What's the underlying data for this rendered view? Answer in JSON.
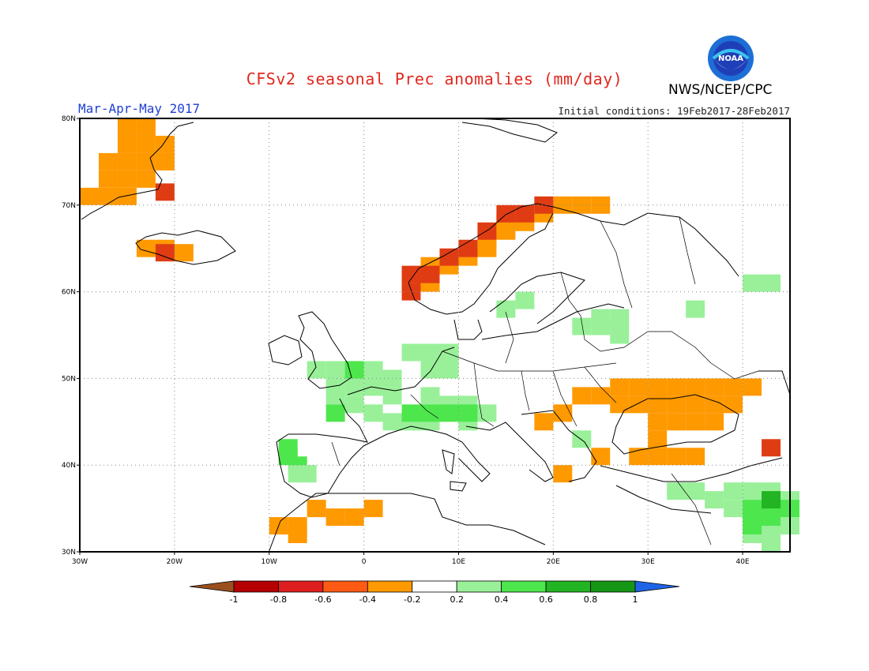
{
  "title": "CFSv2 seasonal Prec anomalies (mm/day)",
  "season_label": "Mar-Apr-May 2017",
  "initial_conditions": "Initial conditions: 19Feb2017-28Feb2017",
  "agency": "NWS/NCEP/CPC",
  "logo": {
    "text": "NOAA",
    "icon": "noaa-logo-icon"
  },
  "map": {
    "lon_range": [
      -30,
      45
    ],
    "lat_range": [
      30,
      80
    ],
    "lon_ticks": [
      {
        "value": -30,
        "label": "30W"
      },
      {
        "value": -20,
        "label": "20W"
      },
      {
        "value": -10,
        "label": "10W"
      },
      {
        "value": 0,
        "label": "0"
      },
      {
        "value": 10,
        "label": "10E"
      },
      {
        "value": 20,
        "label": "20E"
      },
      {
        "value": 30,
        "label": "30E"
      },
      {
        "value": 40,
        "label": "40E"
      }
    ],
    "lat_ticks": [
      {
        "value": 30,
        "label": "30N"
      },
      {
        "value": 40,
        "label": "40N"
      },
      {
        "value": 50,
        "label": "50N"
      },
      {
        "value": 60,
        "label": "60N"
      },
      {
        "value": 70,
        "label": "70N"
      },
      {
        "value": 80,
        "label": "80N"
      }
    ],
    "grid": true,
    "anomaly_regions": [
      {
        "name": "greenland-east",
        "class": "-0.4",
        "color": "#ff9900",
        "cells": [
          [
            -25,
            79
          ],
          [
            -23,
            79
          ],
          [
            -25,
            77
          ],
          [
            -23,
            77
          ],
          [
            -21,
            77
          ],
          [
            -27,
            75
          ],
          [
            -25,
            75
          ],
          [
            -23,
            75
          ],
          [
            -21,
            75
          ],
          [
            -27,
            73
          ],
          [
            -25,
            73
          ],
          [
            -23,
            73
          ],
          [
            -29,
            71
          ],
          [
            -27,
            71
          ],
          [
            -25,
            71
          ]
        ]
      },
      {
        "name": "greenland-east-dry",
        "class": "-0.6",
        "color": "#e03c14",
        "cells": [
          [
            -21,
            71.5
          ]
        ]
      },
      {
        "name": "iceland-west",
        "class": "-0.4",
        "color": "#ff9900",
        "cells": [
          [
            -23,
            65
          ],
          [
            -21,
            65
          ],
          [
            -19,
            64.5
          ]
        ]
      },
      {
        "name": "iceland-west-dry",
        "class": "-0.6",
        "color": "#e03c14",
        "cells": [
          [
            -21,
            64.5
          ]
        ]
      },
      {
        "name": "norway-coast",
        "class": "-0.4",
        "color": "#ff9900",
        "cells": [
          [
            5,
            61
          ],
          [
            7,
            61
          ],
          [
            7,
            63
          ],
          [
            9,
            63
          ],
          [
            11,
            64
          ],
          [
            13,
            65
          ],
          [
            13,
            66
          ],
          [
            15,
            67
          ],
          [
            15,
            68
          ],
          [
            17,
            68
          ],
          [
            19,
            69
          ],
          [
            21,
            70
          ],
          [
            23,
            70
          ],
          [
            25,
            70
          ]
        ]
      },
      {
        "name": "norway-coast-dry",
        "class": "-0.6",
        "color": "#e03c14",
        "cells": [
          [
            5,
            62
          ],
          [
            5,
            60
          ],
          [
            7,
            62
          ],
          [
            9,
            64
          ],
          [
            11,
            65
          ],
          [
            13,
            67
          ],
          [
            15,
            69
          ],
          [
            17,
            69
          ],
          [
            19,
            70
          ]
        ]
      },
      {
        "name": "ukraine-russia",
        "class": "-0.4",
        "color": "#ff9900",
        "cells": [
          [
            27,
            49
          ],
          [
            29,
            49
          ],
          [
            31,
            49
          ],
          [
            33,
            49
          ],
          [
            35,
            49
          ],
          [
            37,
            49
          ],
          [
            39,
            49
          ],
          [
            41,
            49
          ],
          [
            29,
            47
          ],
          [
            31,
            47
          ],
          [
            33,
            47
          ],
          [
            35,
            47
          ],
          [
            37,
            47
          ],
          [
            39,
            47
          ],
          [
            31,
            45
          ],
          [
            33,
            45
          ],
          [
            35,
            45
          ],
          [
            37,
            45
          ],
          [
            31,
            43
          ],
          [
            29,
            41
          ],
          [
            31,
            41
          ],
          [
            33,
            41
          ],
          [
            35,
            41
          ],
          [
            25,
            48
          ],
          [
            23,
            48
          ],
          [
            21,
            46
          ],
          [
            19,
            45
          ],
          [
            25,
            41
          ],
          [
            21,
            39
          ],
          [
            31,
            48
          ],
          [
            27,
            47
          ]
        ]
      },
      {
        "name": "caucasus-dry",
        "class": "-0.6",
        "color": "#e03c14",
        "cells": [
          [
            43,
            42
          ]
        ]
      },
      {
        "name": "morocco-algeria",
        "class": "-0.4",
        "color": "#ff9900",
        "cells": [
          [
            -7,
            33
          ],
          [
            -5,
            35
          ],
          [
            -3,
            34
          ],
          [
            -1,
            34
          ],
          [
            1,
            35
          ],
          [
            -9,
            33
          ],
          [
            -7,
            32
          ]
        ]
      },
      {
        "name": "spain-portugal",
        "class": "0.4",
        "color": "#4de64d",
        "cells": [
          [
            -8,
            42
          ],
          [
            -8,
            41
          ],
          [
            -7,
            40
          ]
        ]
      },
      {
        "name": "spain-portugal-wet",
        "class": "0.2",
        "color": "#99f099",
        "cells": [
          [
            -6,
            39
          ],
          [
            -7,
            39
          ]
        ]
      },
      {
        "name": "france-alps",
        "class": "0.2",
        "color": "#99f099",
        "cells": [
          [
            -5,
            51
          ],
          [
            -3,
            51
          ],
          [
            -1,
            51
          ],
          [
            1,
            51
          ],
          [
            3,
            50
          ],
          [
            -3,
            49
          ],
          [
            -1,
            49
          ],
          [
            1,
            49
          ],
          [
            3,
            48
          ],
          [
            -1,
            47
          ],
          [
            1,
            46
          ],
          [
            3,
            45
          ],
          [
            5,
            45
          ],
          [
            7,
            45
          ],
          [
            9,
            47
          ],
          [
            11,
            47
          ],
          [
            13,
            46
          ],
          [
            5,
            53
          ],
          [
            7,
            53
          ],
          [
            9,
            53
          ],
          [
            7,
            51
          ],
          [
            9,
            51
          ],
          [
            -3,
            48
          ],
          [
            11,
            45
          ],
          [
            7,
            48
          ]
        ]
      },
      {
        "name": "alps-wet",
        "class": "0.4",
        "color": "#4de64d",
        "cells": [
          [
            7,
            46
          ],
          [
            9,
            46
          ],
          [
            5,
            46
          ],
          [
            11,
            46
          ],
          [
            -1,
            51
          ],
          [
            -3,
            46
          ]
        ]
      },
      {
        "name": "scandinavia-baltic",
        "class": "0.2",
        "color": "#99f099",
        "cells": [
          [
            15,
            58
          ],
          [
            17,
            59
          ],
          [
            25,
            57
          ],
          [
            27,
            57
          ],
          [
            23,
            56
          ],
          [
            25,
            56
          ],
          [
            27,
            55
          ],
          [
            35,
            58
          ],
          [
            43,
            61
          ],
          [
            41,
            61
          ]
        ]
      },
      {
        "name": "middle-east",
        "class": "0.2",
        "color": "#99f099",
        "cells": [
          [
            37,
            36
          ],
          [
            39,
            37
          ],
          [
            41,
            37
          ],
          [
            43,
            37
          ],
          [
            39,
            35
          ],
          [
            41,
            34
          ],
          [
            43,
            33
          ],
          [
            41,
            32
          ],
          [
            43,
            31
          ],
          [
            45,
            36
          ],
          [
            45,
            33
          ]
        ]
      },
      {
        "name": "middle-east-wet",
        "class": "0.4",
        "color": "#4de64d",
        "cells": [
          [
            43,
            36
          ],
          [
            43,
            35
          ],
          [
            41,
            35
          ],
          [
            45,
            35
          ],
          [
            43,
            34
          ],
          [
            41,
            33
          ]
        ]
      },
      {
        "name": "middle-east-wettest",
        "class": "0.6",
        "color": "#22b422",
        "cells": [
          [
            43,
            36
          ]
        ]
      },
      {
        "name": "balkan-aegean",
        "class": "0.2",
        "color": "#99f099",
        "cells": [
          [
            23,
            43
          ],
          [
            33,
            37
          ],
          [
            35,
            37
          ]
        ]
      }
    ]
  },
  "colorbar": {
    "colors": [
      "#99501e",
      "#b40000",
      "#dc1e1e",
      "#ff5a14",
      "#ff9900",
      "#ffffff",
      "#99f099",
      "#4de64d",
      "#22b422",
      "#169616",
      "#1e64e6"
    ],
    "labels": [
      "-1",
      "-0.8",
      "-0.6",
      "-0.4",
      "-0.2",
      "0.2",
      "0.4",
      "0.6",
      "0.8",
      "1"
    ]
  }
}
